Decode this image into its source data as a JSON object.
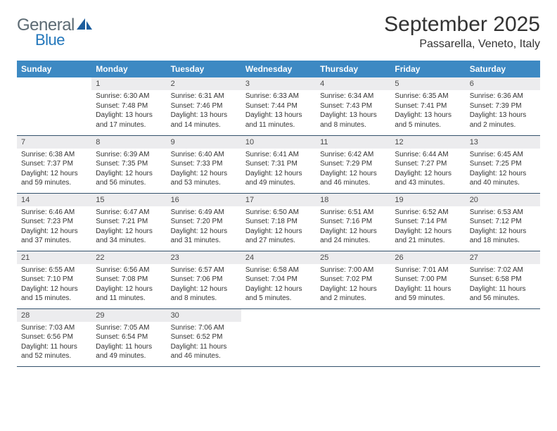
{
  "logo": {
    "text_general": "General",
    "text_blue": "Blue",
    "icon_fill": "#1d5e9e",
    "general_color": "#5d6b74",
    "blue_color": "#2377bb"
  },
  "header": {
    "month_title": "September 2025",
    "location": "Passarella, Veneto, Italy",
    "title_fontsize": 30,
    "location_fontsize": 16,
    "title_color": "#333333"
  },
  "colors": {
    "dow_bg": "#3d89c3",
    "dow_fg": "#ffffff",
    "daynum_bg": "#ececee",
    "daynum_fg": "#4a4a4a",
    "body_fg": "#333333",
    "week_border": "#34526c",
    "page_bg": "#ffffff"
  },
  "days_of_week": [
    "Sunday",
    "Monday",
    "Tuesday",
    "Wednesday",
    "Thursday",
    "Friday",
    "Saturday"
  ],
  "weeks": [
    [
      null,
      {
        "num": "1",
        "sunrise": "Sunrise: 6:30 AM",
        "sunset": "Sunset: 7:48 PM",
        "daylight": "Daylight: 13 hours and 17 minutes."
      },
      {
        "num": "2",
        "sunrise": "Sunrise: 6:31 AM",
        "sunset": "Sunset: 7:46 PM",
        "daylight": "Daylight: 13 hours and 14 minutes."
      },
      {
        "num": "3",
        "sunrise": "Sunrise: 6:33 AM",
        "sunset": "Sunset: 7:44 PM",
        "daylight": "Daylight: 13 hours and 11 minutes."
      },
      {
        "num": "4",
        "sunrise": "Sunrise: 6:34 AM",
        "sunset": "Sunset: 7:43 PM",
        "daylight": "Daylight: 13 hours and 8 minutes."
      },
      {
        "num": "5",
        "sunrise": "Sunrise: 6:35 AM",
        "sunset": "Sunset: 7:41 PM",
        "daylight": "Daylight: 13 hours and 5 minutes."
      },
      {
        "num": "6",
        "sunrise": "Sunrise: 6:36 AM",
        "sunset": "Sunset: 7:39 PM",
        "daylight": "Daylight: 13 hours and 2 minutes."
      }
    ],
    [
      {
        "num": "7",
        "sunrise": "Sunrise: 6:38 AM",
        "sunset": "Sunset: 7:37 PM",
        "daylight": "Daylight: 12 hours and 59 minutes."
      },
      {
        "num": "8",
        "sunrise": "Sunrise: 6:39 AM",
        "sunset": "Sunset: 7:35 PM",
        "daylight": "Daylight: 12 hours and 56 minutes."
      },
      {
        "num": "9",
        "sunrise": "Sunrise: 6:40 AM",
        "sunset": "Sunset: 7:33 PM",
        "daylight": "Daylight: 12 hours and 53 minutes."
      },
      {
        "num": "10",
        "sunrise": "Sunrise: 6:41 AM",
        "sunset": "Sunset: 7:31 PM",
        "daylight": "Daylight: 12 hours and 49 minutes."
      },
      {
        "num": "11",
        "sunrise": "Sunrise: 6:42 AM",
        "sunset": "Sunset: 7:29 PM",
        "daylight": "Daylight: 12 hours and 46 minutes."
      },
      {
        "num": "12",
        "sunrise": "Sunrise: 6:44 AM",
        "sunset": "Sunset: 7:27 PM",
        "daylight": "Daylight: 12 hours and 43 minutes."
      },
      {
        "num": "13",
        "sunrise": "Sunrise: 6:45 AM",
        "sunset": "Sunset: 7:25 PM",
        "daylight": "Daylight: 12 hours and 40 minutes."
      }
    ],
    [
      {
        "num": "14",
        "sunrise": "Sunrise: 6:46 AM",
        "sunset": "Sunset: 7:23 PM",
        "daylight": "Daylight: 12 hours and 37 minutes."
      },
      {
        "num": "15",
        "sunrise": "Sunrise: 6:47 AM",
        "sunset": "Sunset: 7:21 PM",
        "daylight": "Daylight: 12 hours and 34 minutes."
      },
      {
        "num": "16",
        "sunrise": "Sunrise: 6:49 AM",
        "sunset": "Sunset: 7:20 PM",
        "daylight": "Daylight: 12 hours and 31 minutes."
      },
      {
        "num": "17",
        "sunrise": "Sunrise: 6:50 AM",
        "sunset": "Sunset: 7:18 PM",
        "daylight": "Daylight: 12 hours and 27 minutes."
      },
      {
        "num": "18",
        "sunrise": "Sunrise: 6:51 AM",
        "sunset": "Sunset: 7:16 PM",
        "daylight": "Daylight: 12 hours and 24 minutes."
      },
      {
        "num": "19",
        "sunrise": "Sunrise: 6:52 AM",
        "sunset": "Sunset: 7:14 PM",
        "daylight": "Daylight: 12 hours and 21 minutes."
      },
      {
        "num": "20",
        "sunrise": "Sunrise: 6:53 AM",
        "sunset": "Sunset: 7:12 PM",
        "daylight": "Daylight: 12 hours and 18 minutes."
      }
    ],
    [
      {
        "num": "21",
        "sunrise": "Sunrise: 6:55 AM",
        "sunset": "Sunset: 7:10 PM",
        "daylight": "Daylight: 12 hours and 15 minutes."
      },
      {
        "num": "22",
        "sunrise": "Sunrise: 6:56 AM",
        "sunset": "Sunset: 7:08 PM",
        "daylight": "Daylight: 12 hours and 11 minutes."
      },
      {
        "num": "23",
        "sunrise": "Sunrise: 6:57 AM",
        "sunset": "Sunset: 7:06 PM",
        "daylight": "Daylight: 12 hours and 8 minutes."
      },
      {
        "num": "24",
        "sunrise": "Sunrise: 6:58 AM",
        "sunset": "Sunset: 7:04 PM",
        "daylight": "Daylight: 12 hours and 5 minutes."
      },
      {
        "num": "25",
        "sunrise": "Sunrise: 7:00 AM",
        "sunset": "Sunset: 7:02 PM",
        "daylight": "Daylight: 12 hours and 2 minutes."
      },
      {
        "num": "26",
        "sunrise": "Sunrise: 7:01 AM",
        "sunset": "Sunset: 7:00 PM",
        "daylight": "Daylight: 11 hours and 59 minutes."
      },
      {
        "num": "27",
        "sunrise": "Sunrise: 7:02 AM",
        "sunset": "Sunset: 6:58 PM",
        "daylight": "Daylight: 11 hours and 56 minutes."
      }
    ],
    [
      {
        "num": "28",
        "sunrise": "Sunrise: 7:03 AM",
        "sunset": "Sunset: 6:56 PM",
        "daylight": "Daylight: 11 hours and 52 minutes."
      },
      {
        "num": "29",
        "sunrise": "Sunrise: 7:05 AM",
        "sunset": "Sunset: 6:54 PM",
        "daylight": "Daylight: 11 hours and 49 minutes."
      },
      {
        "num": "30",
        "sunrise": "Sunrise: 7:06 AM",
        "sunset": "Sunset: 6:52 PM",
        "daylight": "Daylight: 11 hours and 46 minutes."
      },
      null,
      null,
      null,
      null
    ]
  ]
}
